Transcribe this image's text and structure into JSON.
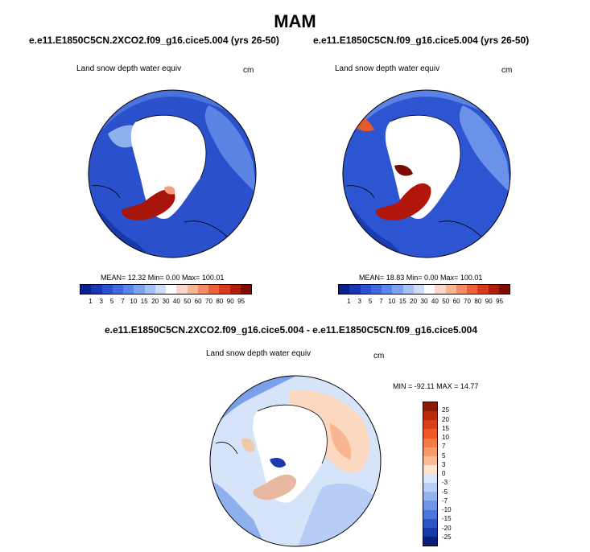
{
  "title": "MAM",
  "panels": [
    {
      "title": "e.e11.E1850C5CN.2XCO2.f09_g16.cice5.004 (yrs 26-50)",
      "variable": "Land snow depth water equiv",
      "units": "cm",
      "stats": "MEAN=  12.32  Min=   0.00  Max= 100.01"
    },
    {
      "title": "e.e11.E1850C5CN.f09_g16.cice5.004 (yrs 26-50)",
      "variable": "Land snow depth water equiv",
      "units": "cm",
      "stats": "MEAN=  18.83  Min=   0.00  Max= 100.01"
    },
    {
      "title": "e.e11.E1850C5CN.2XCO2.f09_g16.cice5.004 - e.e11.E1850C5CN.f09_g16.cice5.004",
      "variable": "Land snow depth water equiv",
      "units": "cm",
      "stats": "MIN = -92.11 MAX =  14.77"
    }
  ],
  "colorbar_abs": {
    "labels": [
      "1",
      "3",
      "5",
      "7",
      "10",
      "15",
      "20",
      "30",
      "40",
      "50",
      "60",
      "70",
      "80",
      "90",
      "95"
    ],
    "colors": [
      "#08208c",
      "#1736b3",
      "#2a4fd0",
      "#3e6ae0",
      "#5b86e8",
      "#7ea2ee",
      "#a5c0f3",
      "#cfdcf8",
      "#ffffff",
      "#fbd9c8",
      "#f7b596",
      "#f28b66",
      "#ec5f38",
      "#d73b1c",
      "#b21d0a",
      "#7e0d04"
    ]
  },
  "colorbar_diff": {
    "labels": [
      "25",
      "20",
      "15",
      "10",
      "7",
      "5",
      "3",
      "0",
      "-3",
      "-5",
      "-7",
      "-10",
      "-15",
      "-20",
      "-25"
    ],
    "colors": [
      "#8c1a05",
      "#b82a0c",
      "#d84018",
      "#ee5a26",
      "#f57a43",
      "#f89a68",
      "#fbbc95",
      "#fde3d0",
      "#dbe8fb",
      "#b7cff6",
      "#93b3ef",
      "#6f96e6",
      "#4b76da",
      "#2c56c7",
      "#1638a8",
      "#0a1e7a"
    ]
  }
}
